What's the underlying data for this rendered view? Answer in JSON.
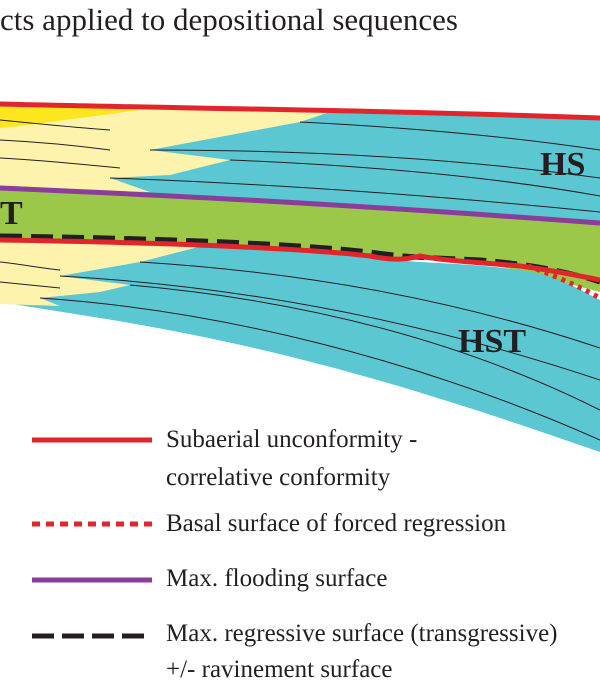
{
  "title": "cts applied to depositional sequences",
  "labels": {
    "hst_upper": "HS",
    "tst_left": "T",
    "hst_lower": "HST"
  },
  "colors": {
    "subaerial_unconformity": "#e0262b",
    "basal_forced_regression": "#e0262b",
    "max_flooding": "#8a3d9a",
    "max_regressive": "#231f20",
    "hst_fill": "#5bc7d3",
    "tst_fill": "#9cc84a",
    "shelf_fill": "#fdf3ad",
    "coastal_fill": "#fde61e"
  },
  "legend": [
    {
      "id": "subaerial",
      "line": "solid-red",
      "text": [
        "Subaerial unconformity -",
        "correlative conformity"
      ]
    },
    {
      "id": "forced",
      "line": "dotted-red",
      "text": [
        "Basal surface of forced regression"
      ]
    },
    {
      "id": "mfs",
      "line": "solid-purple",
      "text": [
        "Max. flooding surface"
      ]
    },
    {
      "id": "mrs",
      "line": "dashed-black",
      "text": [
        "Max. regressive surface (transgressive)",
        "+/- ravinement surface"
      ]
    }
  ]
}
